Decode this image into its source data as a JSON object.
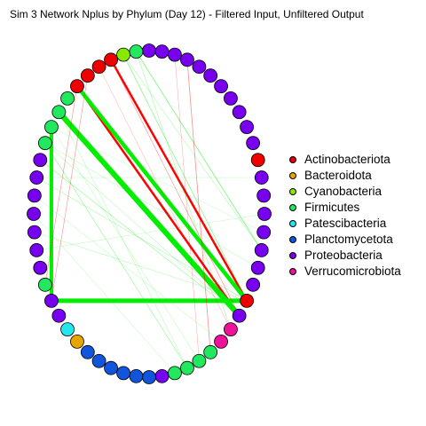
{
  "title": "Sim 3 Network Nplus by Phylum (Day 12) - Filtered Input, Unfiltered Output",
  "legend": [
    {
      "label": "Actinobacteriota",
      "color": "#ee0000"
    },
    {
      "label": "Bacteroidota",
      "color": "#e8a400"
    },
    {
      "label": "Cyanobacteria",
      "color": "#88e800"
    },
    {
      "label": "Firmicutes",
      "color": "#22e860"
    },
    {
      "label": "Patescibacteria",
      "color": "#22e8ee"
    },
    {
      "label": "Planctomycetota",
      "color": "#1155dd"
    },
    {
      "label": "Proteobacteria",
      "color": "#7700ee"
    },
    {
      "label": "Verrucomicrobiota",
      "color": "#ee1199"
    }
  ],
  "network": {
    "node_count": 56,
    "nodes": [
      {
        "phylum": 6
      },
      {
        "phylum": 6
      },
      {
        "phylum": 6
      },
      {
        "phylum": 6
      },
      {
        "phylum": 6
      },
      {
        "phylum": 6
      },
      {
        "phylum": 6
      },
      {
        "phylum": 6
      },
      {
        "phylum": 6
      },
      {
        "phylum": 6
      },
      {
        "phylum": 6
      },
      {
        "phylum": 0
      },
      {
        "phylum": 6
      },
      {
        "phylum": 6
      },
      {
        "phylum": 6
      },
      {
        "phylum": 6
      },
      {
        "phylum": 6
      },
      {
        "phylum": 6
      },
      {
        "phylum": 6
      },
      {
        "phylum": 0
      },
      {
        "phylum": 6
      },
      {
        "phylum": 7
      },
      {
        "phylum": 7
      },
      {
        "phylum": 3
      },
      {
        "phylum": 3
      },
      {
        "phylum": 3
      },
      {
        "phylum": 3
      },
      {
        "phylum": 6
      },
      {
        "phylum": 5
      },
      {
        "phylum": 5
      },
      {
        "phylum": 5
      },
      {
        "phylum": 5
      },
      {
        "phylum": 5
      },
      {
        "phylum": 5
      },
      {
        "phylum": 1
      },
      {
        "phylum": 4
      },
      {
        "phylum": 6
      },
      {
        "phylum": 6
      },
      {
        "phylum": 3
      },
      {
        "phylum": 6
      },
      {
        "phylum": 6
      },
      {
        "phylum": 6
      },
      {
        "phylum": 6
      },
      {
        "phylum": 6
      },
      {
        "phylum": 6
      },
      {
        "phylum": 6
      },
      {
        "phylum": 3
      },
      {
        "phylum": 3
      },
      {
        "phylum": 3
      },
      {
        "phylum": 3
      },
      {
        "phylum": 0
      },
      {
        "phylum": 0
      },
      {
        "phylum": 0
      },
      {
        "phylum": 0
      },
      {
        "phylum": 2
      },
      {
        "phylum": 3
      }
    ],
    "edges": [
      {
        "from": 53,
        "to": 19,
        "weight": 2.5,
        "sign": "positive-red"
      },
      {
        "from": 50,
        "to": 20,
        "weight": 2.5,
        "sign": "positive-red"
      },
      {
        "from": 48,
        "to": 20,
        "weight": 6,
        "sign": "positive-green"
      },
      {
        "from": 50,
        "to": 19,
        "weight": 4.5,
        "sign": "positive-green"
      },
      {
        "from": 47,
        "to": 37,
        "weight": 4,
        "sign": "positive-green"
      },
      {
        "from": 37,
        "to": 19,
        "weight": 5,
        "sign": "positive-green"
      },
      {
        "from": 55,
        "to": 16,
        "weight": 1,
        "sign": "positive-green"
      },
      {
        "from": 54,
        "to": 19,
        "weight": 0.8,
        "sign": "positive-green"
      },
      {
        "from": 3,
        "to": 23,
        "weight": 0.8,
        "sign": "positive-red"
      },
      {
        "from": 53,
        "to": 20,
        "weight": 0.6,
        "sign": "positive-red"
      },
      {
        "from": 50,
        "to": 38,
        "weight": 0.6,
        "sign": "positive-red"
      },
      {
        "from": 46,
        "to": 25,
        "weight": 0.6,
        "sign": "positive-green"
      },
      {
        "from": 45,
        "to": 20,
        "weight": 0.6,
        "sign": "positive-green"
      },
      {
        "from": 51,
        "to": 37,
        "weight": 0.6,
        "sign": "positive-red"
      },
      {
        "from": 44,
        "to": 19,
        "weight": 0.5,
        "sign": "positive-green"
      },
      {
        "from": 46,
        "to": 20,
        "weight": 0.5,
        "sign": "positive-green"
      },
      {
        "from": 54,
        "to": 16,
        "weight": 0.5,
        "sign": "positive-green"
      },
      {
        "from": 55,
        "to": 21,
        "weight": 0.5,
        "sign": "positive-green"
      },
      {
        "from": 2,
        "to": 24,
        "weight": 0.4,
        "sign": "positive-red"
      },
      {
        "from": 41,
        "to": 19,
        "weight": 0.4,
        "sign": "positive-green"
      },
      {
        "from": 48,
        "to": 25,
        "weight": 0.4,
        "sign": "positive-green"
      },
      {
        "from": 46,
        "to": 17,
        "weight": 0.4,
        "sign": "positive-green"
      },
      {
        "from": 43,
        "to": 22,
        "weight": 0.4,
        "sign": "positive-green"
      },
      {
        "from": 47,
        "to": 24,
        "weight": 0.4,
        "sign": "positive-green"
      },
      {
        "from": 52,
        "to": 21,
        "weight": 0.4,
        "sign": "positive-red"
      },
      {
        "from": 42,
        "to": 26,
        "weight": 0.4,
        "sign": "positive-green"
      },
      {
        "from": 40,
        "to": 14,
        "weight": 0.3,
        "sign": "positive-green"
      },
      {
        "from": 44,
        "to": 12,
        "weight": 0.3,
        "sign": "positive-green"
      },
      {
        "from": 47,
        "to": 15,
        "weight": 0.3,
        "sign": "positive-green"
      }
    ]
  },
  "colors": {
    "edge_red": "#ff0000",
    "edge_green": "#00ee00",
    "node_stroke": "#000000"
  }
}
